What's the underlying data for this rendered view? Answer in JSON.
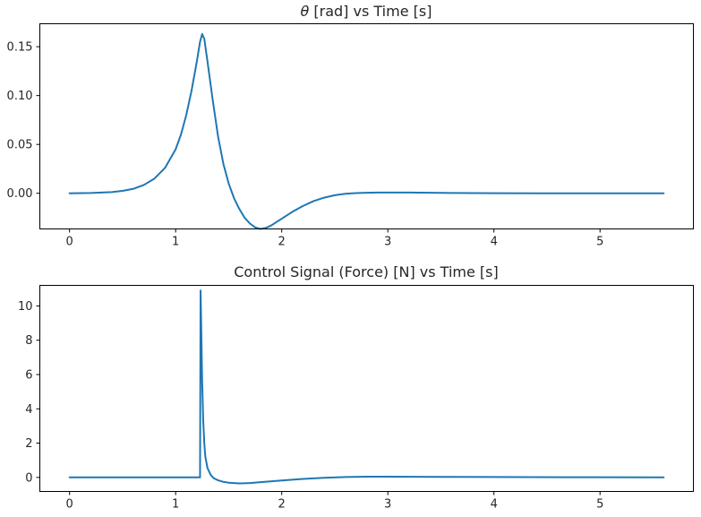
{
  "colors": {
    "series": "#1f77b4",
    "axes": "#000000",
    "text": "#262626",
    "background": "#ffffff"
  },
  "chart_data": [
    {
      "type": "line",
      "title_symbol": "θ",
      "title": " [rad] vs Time [s]",
      "xlabel": "",
      "ylabel": "",
      "grid": false,
      "legend": "none",
      "xlim": [
        -0.28,
        5.88
      ],
      "ylim": [
        -0.0365,
        0.1735
      ],
      "xticks": [
        0,
        1,
        2,
        3,
        4,
        5
      ],
      "yticks": [
        0.0,
        0.05,
        0.1,
        0.15
      ],
      "ytick_labels": [
        "0.00",
        "0.05",
        "0.10",
        "0.15"
      ],
      "series": [
        {
          "x": [
            0,
            0.2,
            0.4,
            0.5,
            0.6,
            0.7,
            0.8,
            0.9,
            1.0,
            1.05,
            1.1,
            1.15,
            1.2,
            1.23,
            1.25,
            1.27,
            1.3,
            1.35,
            1.4,
            1.45,
            1.5,
            1.55,
            1.6,
            1.65,
            1.7,
            1.75,
            1.8,
            1.85,
            1.9,
            2.0,
            2.1,
            2.2,
            2.3,
            2.4,
            2.5,
            2.6,
            2.7,
            2.8,
            2.9,
            3.0,
            3.2,
            3.4,
            3.6,
            3.8,
            4.0,
            4.5,
            5.0,
            5.6
          ],
          "y": [
            0.0,
            0.0003,
            0.0012,
            0.0025,
            0.0045,
            0.0085,
            0.015,
            0.026,
            0.045,
            0.06,
            0.08,
            0.105,
            0.135,
            0.155,
            0.163,
            0.158,
            0.135,
            0.095,
            0.058,
            0.03,
            0.01,
            -0.005,
            -0.016,
            -0.025,
            -0.031,
            -0.035,
            -0.0365,
            -0.0355,
            -0.033,
            -0.026,
            -0.019,
            -0.013,
            -0.008,
            -0.0045,
            -0.002,
            -0.0005,
            0.0002,
            0.0005,
            0.0007,
            0.0008,
            0.0007,
            0.0005,
            0.0003,
            0.0002,
            0.0001,
            0.0,
            0.0,
            0.0
          ]
        }
      ]
    },
    {
      "type": "line",
      "title": "Control Signal (Force) [N] vs Time [s]",
      "xlabel": "",
      "ylabel": "",
      "grid": false,
      "legend": "none",
      "xlim": [
        -0.28,
        5.88
      ],
      "ylim": [
        -0.82,
        11.2
      ],
      "xticks": [
        0,
        1,
        2,
        3,
        4,
        5
      ],
      "yticks": [
        0,
        2,
        4,
        6,
        8,
        10
      ],
      "ytick_labels": [
        "0",
        "2",
        "4",
        "6",
        "8",
        "10"
      ],
      "series": [
        {
          "x": [
            0,
            1.23,
            1.235,
            1.24,
            1.25,
            1.26,
            1.27,
            1.28,
            1.3,
            1.33,
            1.36,
            1.4,
            1.45,
            1.5,
            1.6,
            1.7,
            1.8,
            2.0,
            2.2,
            2.4,
            2.6,
            2.8,
            3.0,
            3.5,
            4.0,
            5.0,
            5.6
          ],
          "y": [
            0.0,
            0.0,
            10.9,
            9.2,
            5.6,
            3.3,
            2.0,
            1.2,
            0.55,
            0.15,
            -0.05,
            -0.17,
            -0.26,
            -0.31,
            -0.35,
            -0.33,
            -0.28,
            -0.18,
            -0.09,
            -0.02,
            0.02,
            0.04,
            0.04,
            0.03,
            0.02,
            0.01,
            0.0
          ]
        }
      ]
    }
  ]
}
